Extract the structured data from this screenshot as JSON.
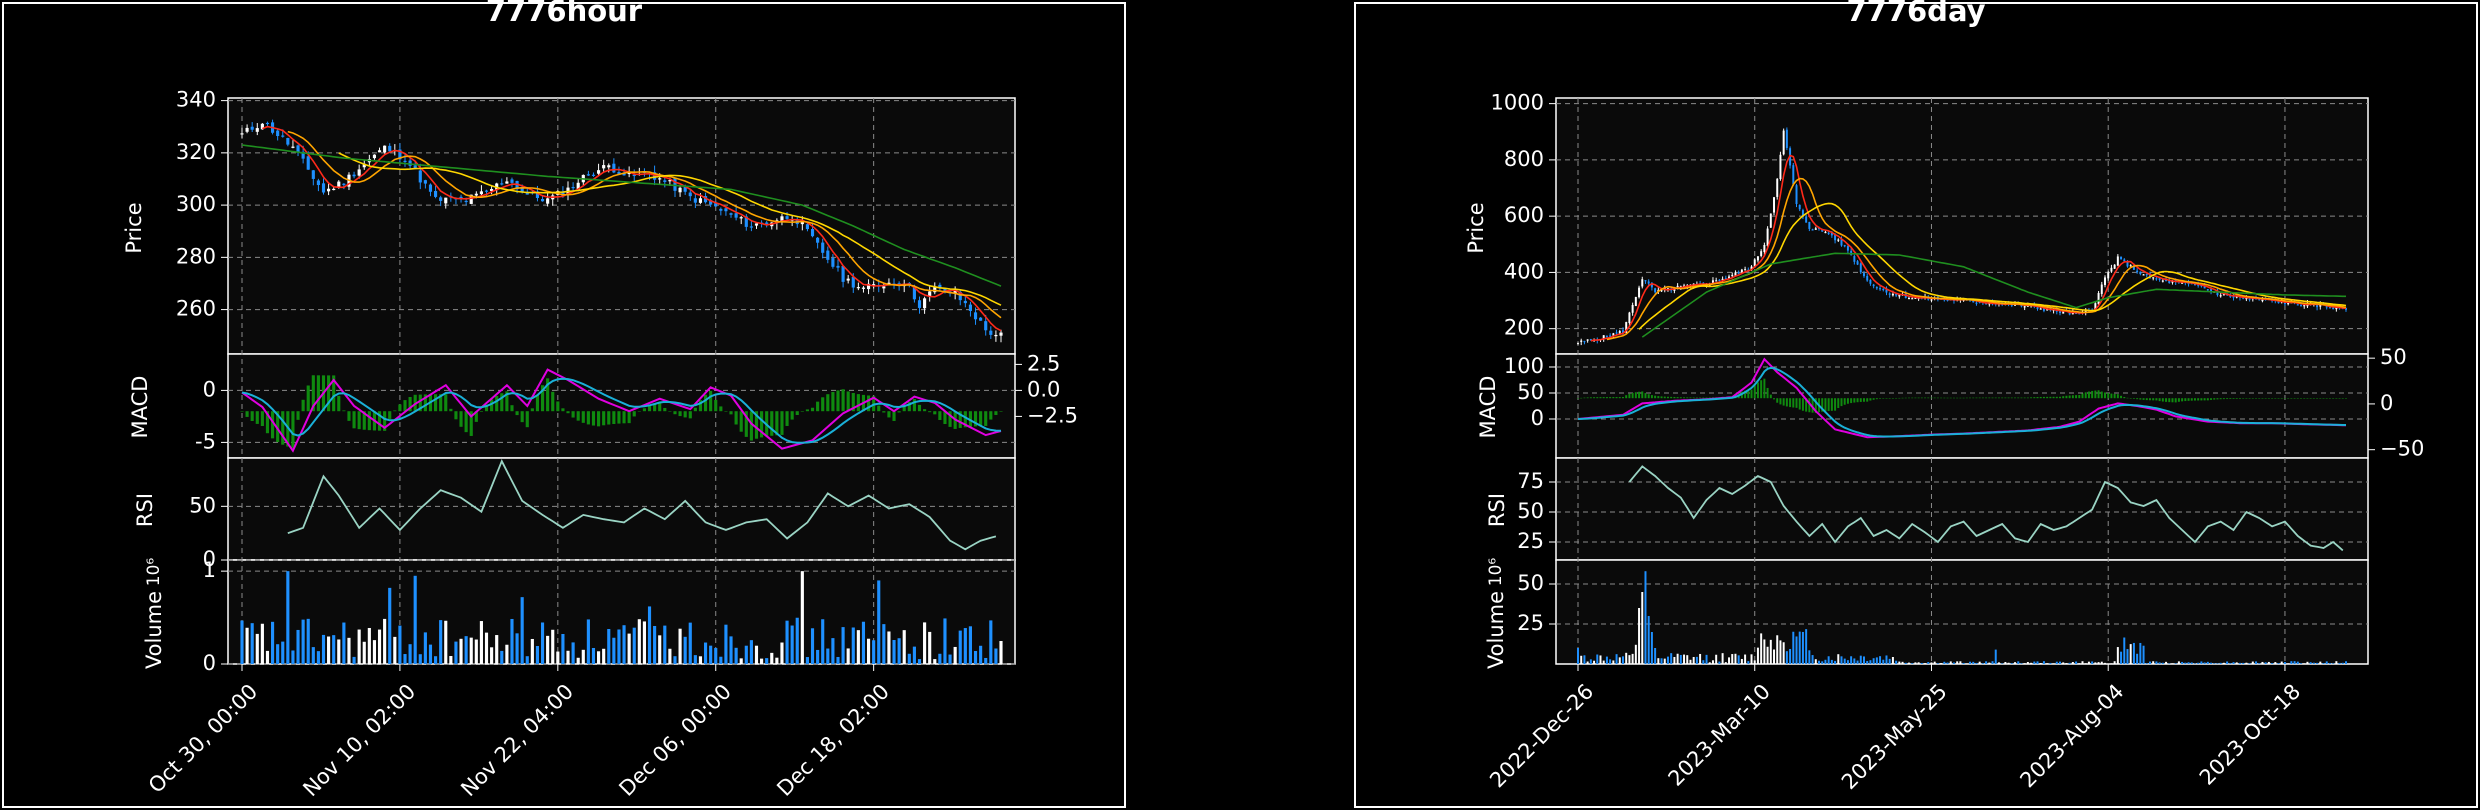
{
  "figures": [
    {
      "title": "7776hour",
      "panel_labels": {
        "price": "Price",
        "macd": "MACD",
        "rsi": "RSI",
        "volume": "Volume",
        "volume_exponent": "10⁶"
      }
    },
    {
      "title": "7776day",
      "panel_labels": {
        "price": "Price",
        "macd": "MACD",
        "rsi": "RSI",
        "volume": "Volume",
        "volume_exponent": "10⁶"
      }
    }
  ],
  "colors": {
    "background": "#000000",
    "plot_background": "#0a0a0a",
    "grid": "#8a8a8a",
    "candle_up": "#ffffff",
    "candle_down": "#1e90ff",
    "ma_fast": "#ff2a1a",
    "ma_mid": "#ffa500",
    "ma_slow": "#ffd700",
    "ma_long": "#1f8f1f",
    "macd_line": "#e000e0",
    "signal_line": "#1ab0d8",
    "histogram": "#0f8a0f",
    "rsi": "#9ad4c4"
  },
  "chart_data": [
    {
      "type": "line",
      "title": "7776hour",
      "x_ticks": [
        "Oct 30, 00:00",
        "Nov 10, 02:00",
        "Nov 22, 04:00",
        "Dec 06, 00:00",
        "Dec 18, 02:00"
      ],
      "n_bars": 150,
      "price": {
        "ylabel": "Price",
        "ylim": [
          243,
          341
        ],
        "yticks": [
          260,
          280,
          300,
          320,
          340
        ],
        "close_keypoints": [
          [
            0,
            327
          ],
          [
            4,
            332
          ],
          [
            10,
            322
          ],
          [
            16,
            305
          ],
          [
            20,
            309
          ],
          [
            24,
            316
          ],
          [
            28,
            322
          ],
          [
            32,
            318
          ],
          [
            38,
            302
          ],
          [
            44,
            302
          ],
          [
            48,
            305
          ],
          [
            52,
            310
          ],
          [
            56,
            304
          ],
          [
            60,
            302
          ],
          [
            64,
            306
          ],
          [
            68,
            312
          ],
          [
            72,
            315
          ],
          [
            76,
            311
          ],
          [
            80,
            312
          ],
          [
            84,
            308
          ],
          [
            88,
            303
          ],
          [
            92,
            300
          ],
          [
            96,
            296
          ],
          [
            100,
            292
          ],
          [
            104,
            294
          ],
          [
            108,
            296
          ],
          [
            110,
            292
          ],
          [
            114,
            282
          ],
          [
            118,
            272
          ],
          [
            122,
            268
          ],
          [
            126,
            270
          ],
          [
            130,
            271
          ],
          [
            133,
            262
          ],
          [
            136,
            268
          ],
          [
            140,
            266
          ],
          [
            143,
            260
          ],
          [
            146,
            252
          ],
          [
            149,
            250
          ]
        ],
        "ma_long_keypoints": [
          [
            0,
            323
          ],
          [
            20,
            318
          ],
          [
            60,
            311
          ],
          [
            96,
            306
          ],
          [
            110,
            300
          ],
          [
            120,
            292
          ],
          [
            130,
            283
          ],
          [
            140,
            276
          ],
          [
            149,
            269
          ]
        ]
      },
      "macd": {
        "ylabel": "MACD",
        "ylim": [
          -6.5,
          3.5
        ],
        "left_ticks": [
          0,
          -5
        ],
        "right_ticks": [
          "2.5",
          "0.0",
          "−2.5"
        ],
        "macd_keypoints": [
          [
            0,
            -0.2
          ],
          [
            4,
            -1.6
          ],
          [
            10,
            -5.8
          ],
          [
            14,
            -1.5
          ],
          [
            18,
            1.0
          ],
          [
            22,
            -1.5
          ],
          [
            28,
            -3.6
          ],
          [
            34,
            -1.3
          ],
          [
            40,
            0.5
          ],
          [
            45,
            -2.5
          ],
          [
            52,
            0.5
          ],
          [
            56,
            -1.5
          ],
          [
            60,
            2.0
          ],
          [
            64,
            1.0
          ],
          [
            70,
            -0.8
          ],
          [
            76,
            -2.0
          ],
          [
            82,
            -0.8
          ],
          [
            88,
            -1.8
          ],
          [
            92,
            0.3
          ],
          [
            96,
            -0.5
          ],
          [
            100,
            -3.2
          ],
          [
            106,
            -5.6
          ],
          [
            112,
            -4.8
          ],
          [
            118,
            -2.2
          ],
          [
            124,
            -0.7
          ],
          [
            128,
            -2.0
          ],
          [
            132,
            -0.6
          ],
          [
            136,
            -1.2
          ],
          [
            140,
            -2.8
          ],
          [
            146,
            -4.3
          ],
          [
            149,
            -3.9
          ]
        ],
        "right_ticks_pos": [
          2.5,
          0.0,
          -2.5
        ]
      },
      "rsi": {
        "ylabel": "RSI",
        "ylim": [
          0,
          95
        ],
        "yticks": [
          0,
          50
        ],
        "keypoints": [
          [
            9,
            25
          ],
          [
            12,
            30
          ],
          [
            16,
            78
          ],
          [
            19,
            60
          ],
          [
            23,
            30
          ],
          [
            27,
            48
          ],
          [
            31,
            28
          ],
          [
            35,
            48
          ],
          [
            39,
            65
          ],
          [
            43,
            58
          ],
          [
            47,
            45
          ],
          [
            51,
            92
          ],
          [
            55,
            55
          ],
          [
            59,
            42
          ],
          [
            63,
            30
          ],
          [
            67,
            42
          ],
          [
            71,
            38
          ],
          [
            75,
            35
          ],
          [
            79,
            48
          ],
          [
            83,
            38
          ],
          [
            87,
            55
          ],
          [
            91,
            35
          ],
          [
            95,
            28
          ],
          [
            99,
            35
          ],
          [
            103,
            38
          ],
          [
            107,
            20
          ],
          [
            111,
            35
          ],
          [
            115,
            62
          ],
          [
            119,
            50
          ],
          [
            123,
            60
          ],
          [
            127,
            48
          ],
          [
            131,
            52
          ],
          [
            135,
            40
          ],
          [
            139,
            18
          ],
          [
            142,
            10
          ],
          [
            145,
            18
          ],
          [
            148,
            22
          ]
        ]
      },
      "volume": {
        "ylabel": "Volume",
        "exponent_label": "10⁶",
        "ylim": [
          0,
          1.12
        ],
        "yticks": [
          0,
          1
        ]
      }
    },
    {
      "type": "line",
      "title": "7776day",
      "x_ticks": [
        "2022-Dec-26",
        "2023-Mar-10",
        "2023-May-25",
        "2023-Aug-04",
        "2023-Oct-18"
      ],
      "n_bars": 240,
      "price": {
        "ylabel": "Price",
        "ylim": [
          110,
          1020
        ],
        "yticks": [
          200,
          400,
          600,
          800,
          1000
        ],
        "close_keypoints": [
          [
            0,
            150
          ],
          [
            8,
            170
          ],
          [
            14,
            190
          ],
          [
            20,
            380
          ],
          [
            24,
            330
          ],
          [
            30,
            345
          ],
          [
            40,
            360
          ],
          [
            48,
            390
          ],
          [
            54,
            420
          ],
          [
            58,
            500
          ],
          [
            62,
            730
          ],
          [
            64,
            900
          ],
          [
            66,
            780
          ],
          [
            68,
            640
          ],
          [
            72,
            560
          ],
          [
            78,
            540
          ],
          [
            84,
            480
          ],
          [
            90,
            370
          ],
          [
            96,
            330
          ],
          [
            104,
            310
          ],
          [
            112,
            305
          ],
          [
            120,
            300
          ],
          [
            130,
            290
          ],
          [
            140,
            280
          ],
          [
            150,
            260
          ],
          [
            156,
            250
          ],
          [
            160,
            270
          ],
          [
            164,
            380
          ],
          [
            168,
            450
          ],
          [
            172,
            420
          ],
          [
            176,
            390
          ],
          [
            182,
            370
          ],
          [
            188,
            360
          ],
          [
            194,
            350
          ],
          [
            200,
            320
          ],
          [
            206,
            310
          ],
          [
            214,
            300
          ],
          [
            222,
            290
          ],
          [
            232,
            280
          ],
          [
            239,
            270
          ]
        ],
        "ma_long_keypoints": [
          [
            20,
            170
          ],
          [
            40,
            330
          ],
          [
            60,
            430
          ],
          [
            80,
            468
          ],
          [
            100,
            462
          ],
          [
            120,
            420
          ],
          [
            140,
            330
          ],
          [
            155,
            275
          ],
          [
            165,
            310
          ],
          [
            180,
            340
          ],
          [
            200,
            330
          ],
          [
            220,
            320
          ],
          [
            239,
            315
          ]
        ]
      },
      "macd": {
        "ylabel": "MACD",
        "ylim": [
          -75,
          125
        ],
        "left_ticks": [
          100,
          50,
          0
        ],
        "right_ticks": [
          "50",
          "0",
          "−50"
        ],
        "macd_keypoints": [
          [
            0,
            0
          ],
          [
            14,
            8
          ],
          [
            20,
            30
          ],
          [
            30,
            35
          ],
          [
            40,
            38
          ],
          [
            48,
            42
          ],
          [
            54,
            70
          ],
          [
            58,
            115
          ],
          [
            62,
            90
          ],
          [
            68,
            60
          ],
          [
            74,
            15
          ],
          [
            80,
            -20
          ],
          [
            90,
            -35
          ],
          [
            100,
            -33
          ],
          [
            110,
            -30
          ],
          [
            120,
            -28
          ],
          [
            130,
            -25
          ],
          [
            140,
            -22
          ],
          [
            150,
            -15
          ],
          [
            156,
            -5
          ],
          [
            162,
            20
          ],
          [
            168,
            30
          ],
          [
            174,
            25
          ],
          [
            180,
            18
          ],
          [
            186,
            5
          ],
          [
            196,
            -5
          ],
          [
            206,
            -8
          ],
          [
            216,
            -8
          ],
          [
            226,
            -10
          ],
          [
            239,
            -12
          ]
        ],
        "right_ticks_pos": [
          50,
          0,
          -50
        ]
      },
      "rsi": {
        "ylabel": "RSI",
        "ylim": [
          10,
          95
        ],
        "yticks": [
          25,
          50,
          75
        ],
        "keypoints": [
          [
            16,
            75
          ],
          [
            20,
            88
          ],
          [
            24,
            80
          ],
          [
            28,
            70
          ],
          [
            32,
            62
          ],
          [
            36,
            45
          ],
          [
            40,
            60
          ],
          [
            44,
            70
          ],
          [
            48,
            65
          ],
          [
            52,
            72
          ],
          [
            56,
            80
          ],
          [
            60,
            75
          ],
          [
            64,
            55
          ],
          [
            68,
            42
          ],
          [
            72,
            30
          ],
          [
            76,
            40
          ],
          [
            80,
            25
          ],
          [
            84,
            38
          ],
          [
            88,
            45
          ],
          [
            92,
            30
          ],
          [
            96,
            35
          ],
          [
            100,
            28
          ],
          [
            104,
            40
          ],
          [
            108,
            33
          ],
          [
            112,
            25
          ],
          [
            116,
            38
          ],
          [
            120,
            42
          ],
          [
            124,
            30
          ],
          [
            128,
            35
          ],
          [
            132,
            40
          ],
          [
            136,
            28
          ],
          [
            140,
            25
          ],
          [
            144,
            40
          ],
          [
            148,
            35
          ],
          [
            152,
            38
          ],
          [
            156,
            45
          ],
          [
            160,
            52
          ],
          [
            164,
            75
          ],
          [
            168,
            70
          ],
          [
            172,
            58
          ],
          [
            176,
            55
          ],
          [
            180,
            60
          ],
          [
            184,
            45
          ],
          [
            188,
            35
          ],
          [
            192,
            25
          ],
          [
            196,
            38
          ],
          [
            200,
            42
          ],
          [
            204,
            35
          ],
          [
            208,
            50
          ],
          [
            212,
            45
          ],
          [
            216,
            38
          ],
          [
            220,
            42
          ],
          [
            224,
            30
          ],
          [
            228,
            22
          ],
          [
            232,
            20
          ],
          [
            235,
            25
          ],
          [
            238,
            18
          ]
        ]
      },
      "volume": {
        "ylabel": "Volume",
        "exponent_label": "10⁶",
        "ylim": [
          0,
          65
        ],
        "yticks": [
          25,
          50
        ]
      }
    }
  ]
}
